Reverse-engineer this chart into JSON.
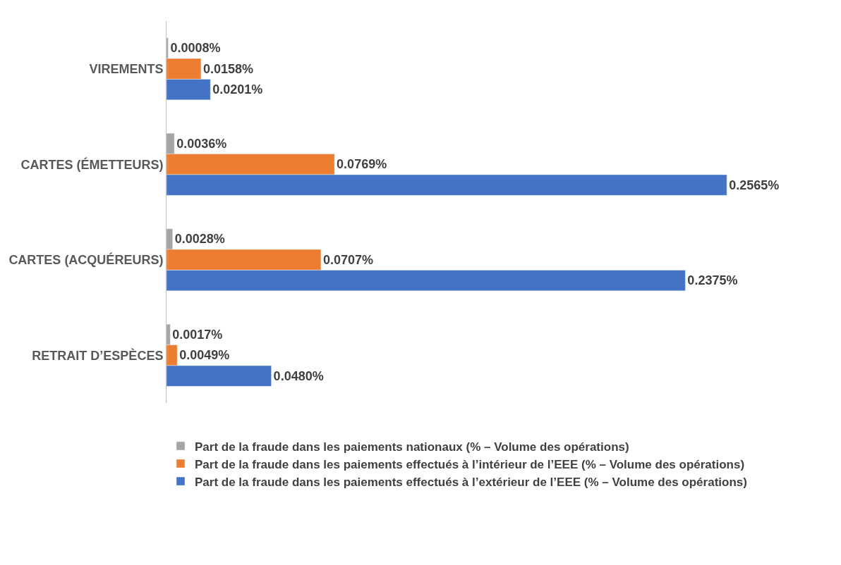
{
  "chart_data": {
    "type": "bar",
    "orientation": "horizontal",
    "categories": [
      "VIREMENTS",
      "CARTES (ÉMETTEURS)",
      "CARTES (ACQUÉREURS)",
      "RETRAIT D’ESPÈCES"
    ],
    "series": [
      {
        "name": "Part de la fraude dans les paiements nationaux (% – Volume des opérations)",
        "color": "#a5a5a5",
        "values": [
          0.0008,
          0.0036,
          0.0028,
          0.0017
        ],
        "value_labels": [
          "0.0008%",
          "0.0036%",
          "0.0028%",
          "0.0017%"
        ]
      },
      {
        "name": "Part de la fraude dans les paiements effectués à l’intérieur de l’EEE (% – Volume des opérations)",
        "color": "#ed7d31",
        "values": [
          0.0158,
          0.0769,
          0.0707,
          0.0049
        ],
        "value_labels": [
          "0.0158%",
          "0.0769%",
          "0.0707%",
          "0.0049%"
        ]
      },
      {
        "name": "Part de la fraude dans les paiements effectués à l’extérieur de l’EEE (% – Volume des opérations)",
        "color": "#4472c4",
        "values": [
          0.0201,
          0.2565,
          0.2375,
          0.048
        ],
        "value_labels": [
          "0.0201%",
          "0.2565%",
          "0.2375%",
          "0.0480%"
        ]
      }
    ],
    "legend": "bottom",
    "tick_labels": "y"
  }
}
